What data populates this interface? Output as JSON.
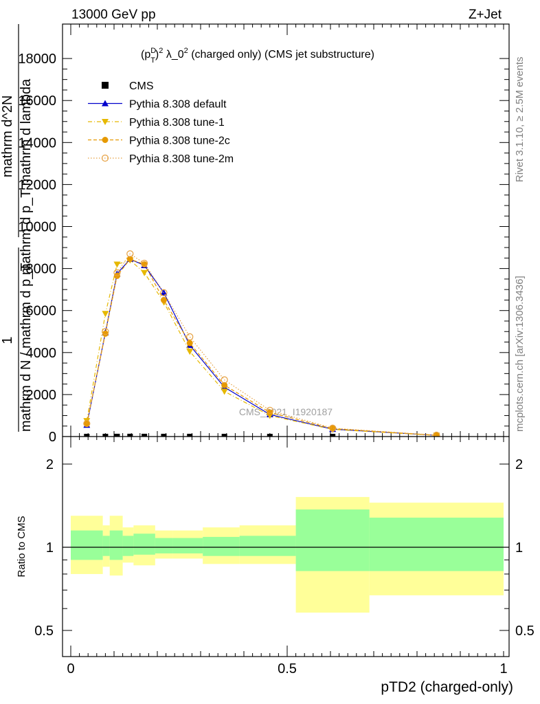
{
  "header": {
    "left": "13000 GeV pp",
    "right": "Z+Jet"
  },
  "side_labels": {
    "rivet": "Rivet 3.1.10, ≥ 2.5M events",
    "mcplots": "mcplots.cern.ch [arXiv:1306.3436]"
  },
  "watermark": "CMS_2021_I1920187",
  "main_plot": {
    "title": "(p_T^D)^2 λ_0^2 (charged only) (CMS jet substructure)",
    "y_label_top": "1",
    "y_label_num": "mathrm d^2N",
    "y_label_mid": "mathrm d p_T mathrm d lambda",
    "y_label_den": "mathrm d N / mathrm d p_T",
    "y_ticks": [
      "0",
      "2000",
      "4000",
      "6000",
      "8000",
      "10000",
      "12000",
      "14000",
      "16000",
      "18000"
    ]
  },
  "ratio_plot": {
    "y_label": "Ratio to CMS",
    "y_ticks": [
      "0.5",
      "1",
      "2"
    ],
    "x_ticks": [
      "0",
      "0.5",
      "1"
    ],
    "x_label": "pTD2 (charged-only)"
  },
  "legend": [
    {
      "name": "CMS",
      "color": "#000000",
      "marker": "square",
      "line": "none"
    },
    {
      "name": "Pythia 8.308 default",
      "color": "#0000cc",
      "marker": "triangle-up",
      "line": "solid"
    },
    {
      "name": "Pythia 8.308 tune-1",
      "color": "#e6b800",
      "marker": "triangle-down",
      "line": "dashdot"
    },
    {
      "name": "Pythia 8.308 tune-2c",
      "color": "#e69900",
      "marker": "circle",
      "line": "dashed"
    },
    {
      "name": "Pythia 8.308 tune-2m",
      "color": "#e6a040",
      "marker": "circle-open",
      "line": "dotted"
    }
  ],
  "chart_data": [
    {
      "type": "line",
      "x": [
        0.037,
        0.08,
        0.107,
        0.137,
        0.17,
        0.215,
        0.275,
        0.355,
        0.46,
        0.605,
        0.845
      ],
      "xlim": [
        -0.02,
        1.02
      ],
      "ylim": [
        0,
        19500
      ],
      "series": [
        {
          "name": "CMS",
          "values": [
            0.6,
            1.4,
            2.2,
            2.6,
            2.4,
            1.8,
            1.1,
            0.5,
            0.18,
            0.05,
            0.01
          ]
        },
        {
          "name": "Pythia 8.308 default",
          "values": [
            550,
            4950,
            7750,
            8450,
            8150,
            6850,
            4350,
            2350,
            1050,
            350,
            60
          ]
        },
        {
          "name": "Pythia 8.308 tune-1",
          "values": [
            750,
            5850,
            8200,
            8400,
            7800,
            6400,
            4050,
            2150,
            1000,
            340,
            55
          ]
        },
        {
          "name": "Pythia 8.308 tune-2c",
          "values": [
            600,
            4900,
            7650,
            8450,
            8200,
            6500,
            4450,
            2450,
            1150,
            380,
            60
          ]
        },
        {
          "name": "Pythia 8.308 tune-2m",
          "values": [
            620,
            5000,
            7800,
            8700,
            8250,
            6850,
            4750,
            2700,
            1250,
            400,
            65
          ]
        }
      ]
    },
    {
      "type": "area",
      "y_scale": "log",
      "ylim": [
        0.4,
        2.4
      ],
      "x_edges": [
        0.0,
        0.074,
        0.09,
        0.12,
        0.145,
        0.195,
        0.235,
        0.305,
        0.39,
        0.52,
        0.69,
        1.0
      ],
      "series": [
        {
          "name": "",
          "upper": [
            1.15,
            1.1,
            1.15,
            1.1,
            1.12,
            1.08,
            1.08,
            1.09,
            1.1,
            1.37,
            1.28
          ],
          "lower": [
            0.9,
            0.93,
            0.9,
            0.93,
            0.94,
            0.95,
            0.95,
            0.93,
            0.93,
            0.82,
            0.82
          ]
        },
        {
          "name": "",
          "upper": [
            1.3,
            1.2,
            1.3,
            1.18,
            1.2,
            1.15,
            1.15,
            1.18,
            1.2,
            1.52,
            1.45
          ],
          "lower": [
            0.8,
            0.85,
            0.79,
            0.88,
            0.86,
            0.91,
            0.91,
            0.87,
            0.87,
            0.58,
            0.67
          ]
        }
      ],
      "reference": 1
    }
  ]
}
